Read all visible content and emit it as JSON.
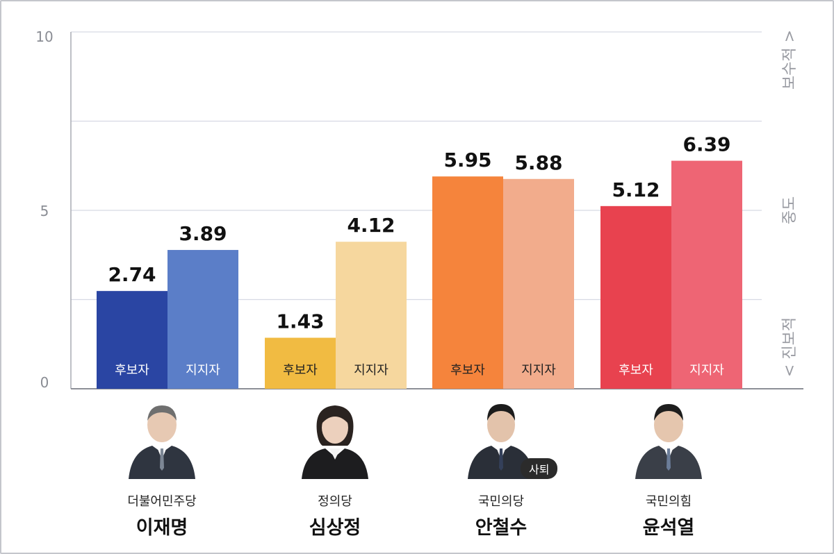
{
  "chart_data": {
    "type": "bar",
    "ylim": [
      0,
      10
    ],
    "yticks": [
      "0",
      "5",
      "10"
    ],
    "right_axis": {
      "bottom": "< 진보적",
      "middle": "중도",
      "top": "보수적 >"
    },
    "bar_labels": [
      "후보자",
      "지지자"
    ],
    "categories": [
      "이재명",
      "심상정",
      "안철수",
      "윤석열"
    ],
    "groups": [
      {
        "party": "더불어민주당",
        "name": "이재명",
        "values": [
          2.74,
          3.89
        ],
        "colors": [
          "#2a45a3",
          "#5b7ec8"
        ]
      },
      {
        "party": "정의당",
        "name": "심상정",
        "values": [
          1.43,
          4.12
        ],
        "colors": [
          "#f1bb42",
          "#f6d79e"
        ]
      },
      {
        "party": "국민의당",
        "name": "안철수",
        "values": [
          5.95,
          5.88
        ],
        "colors": [
          "#f5843c",
          "#f2ac8c"
        ],
        "status": "사퇴"
      },
      {
        "party": "국민의힘",
        "name": "윤석열",
        "values": [
          5.12,
          6.39
        ],
        "colors": [
          "#e8424f",
          "#ee6574"
        ]
      }
    ],
    "grid": true
  },
  "icons": [
    "person-photo"
  ]
}
